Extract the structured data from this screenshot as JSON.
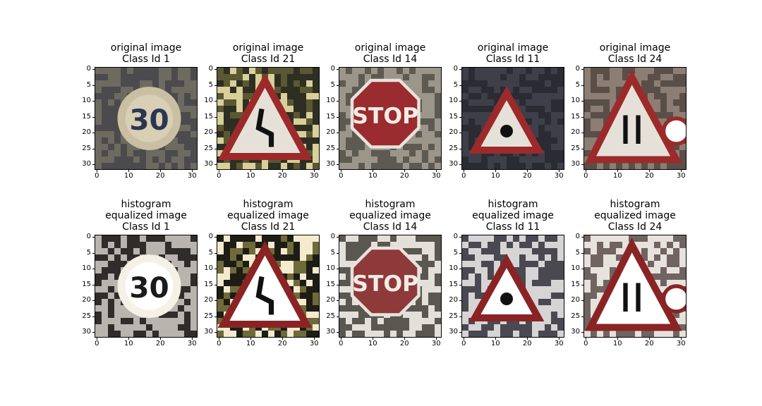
{
  "chart_data": {
    "type": "image_grid",
    "rows": 2,
    "cols": 5,
    "x_ticks": [
      "0",
      "10",
      "20",
      "30"
    ],
    "x_tick_values": [
      0,
      10,
      20,
      30
    ],
    "y_ticks": [
      "0",
      "5",
      "10",
      "15",
      "20",
      "25",
      "30"
    ],
    "y_tick_values": [
      0,
      5,
      10,
      15,
      20,
      25,
      30
    ],
    "xlim": [
      -0.5,
      31.5
    ],
    "ylim": [
      31.5,
      -0.5
    ],
    "panels": [
      {
        "title_lines": [
          "original image",
          "Class Id 1"
        ],
        "sign": "speed30",
        "variant": "original"
      },
      {
        "title_lines": [
          "original image",
          "Class Id 21"
        ],
        "sign": "double-curve",
        "variant": "original"
      },
      {
        "title_lines": [
          "original image",
          "Class Id 14"
        ],
        "sign": "stop",
        "variant": "original"
      },
      {
        "title_lines": [
          "original image",
          "Class Id 11"
        ],
        "sign": "intersection",
        "variant": "original"
      },
      {
        "title_lines": [
          "original image",
          "Class Id 24"
        ],
        "sign": "road-narrows",
        "variant": "original"
      },
      {
        "title_lines": [
          "histogram",
          "equalized image",
          "Class Id 1"
        ],
        "sign": "speed30",
        "variant": "equalized"
      },
      {
        "title_lines": [
          "histogram",
          "equalized image",
          "Class Id 21"
        ],
        "sign": "double-curve",
        "variant": "equalized"
      },
      {
        "title_lines": [
          "histogram",
          "equalized image",
          "Class Id 14"
        ],
        "sign": "stop",
        "variant": "equalized"
      },
      {
        "title_lines": [
          "histogram",
          "equalized image",
          "Class Id 11"
        ],
        "sign": "intersection",
        "variant": "equalized"
      },
      {
        "title_lines": [
          "histogram",
          "equalized image",
          "Class Id 24"
        ],
        "sign": "road-narrows",
        "variant": "equalized"
      }
    ]
  }
}
